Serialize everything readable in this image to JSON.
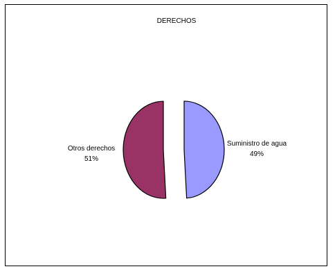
{
  "chart_data": {
    "type": "pie",
    "title": "DERECHOS",
    "slices": [
      {
        "label": "Suministro de agua",
        "value": 49,
        "value_label": "49%",
        "color": "#9999ff"
      },
      {
        "label": "Otros derechos",
        "value": 51,
        "value_label": "51%",
        "color": "#993366"
      }
    ],
    "exploded": true,
    "legend": "none"
  }
}
